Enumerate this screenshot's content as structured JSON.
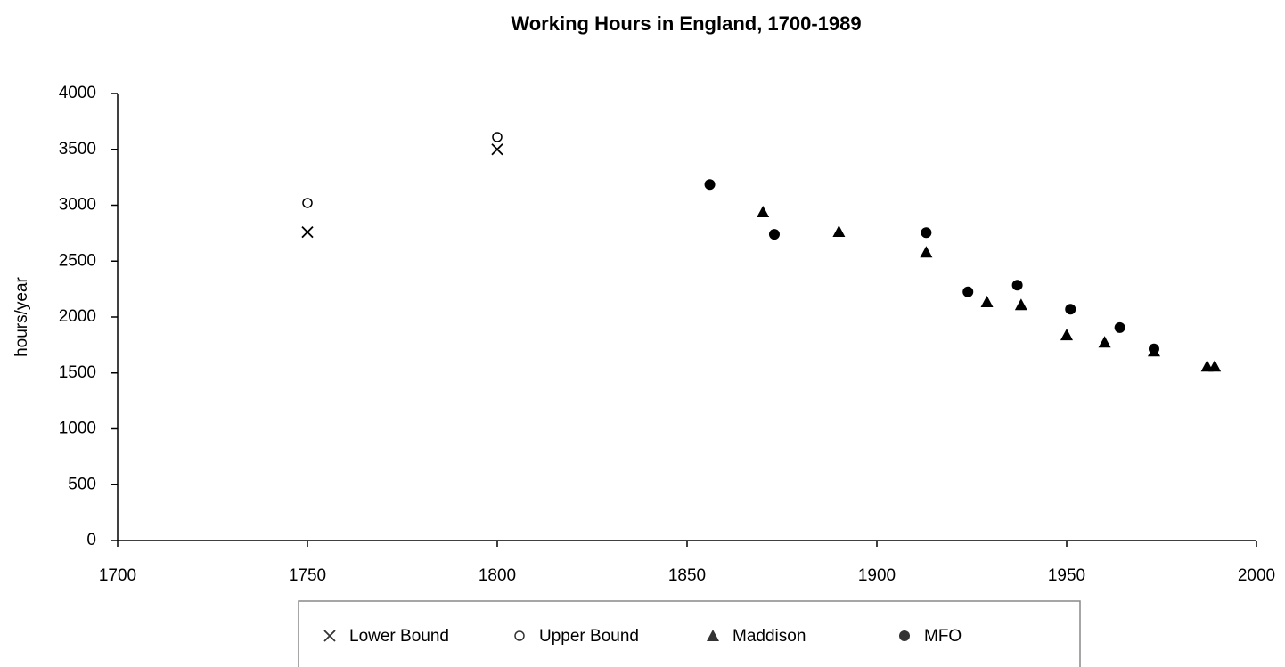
{
  "chart_data": {
    "type": "scatter",
    "title": "Working Hours in England, 1700-1989",
    "y_label": "hours/year",
    "xlim": [
      1700,
      2000
    ],
    "xticks": [
      1700,
      1750,
      1800,
      1850,
      1900,
      1950,
      2000
    ],
    "ylim": [
      0,
      4000
    ],
    "yticks": [
      0,
      500,
      1000,
      1500,
      2000,
      2500,
      3000,
      3500,
      4000
    ],
    "grid": false,
    "legend": "bottom",
    "series": [
      {
        "name": "Lower Bound",
        "color": "#000000",
        "marker": "x",
        "x": [
          1750,
          1800
        ],
        "values": [
          2760,
          3500
        ]
      },
      {
        "name": "Upper Bound",
        "color": "#000000",
        "marker": "open-circle",
        "x": [
          1750,
          1800
        ],
        "values": [
          3020,
          3610
        ]
      },
      {
        "name": "Maddison",
        "color": "#000000",
        "marker": "triangle",
        "x": [
          1870,
          1890,
          1913,
          1929,
          1938,
          1950,
          1960,
          1973,
          1987,
          1989
        ],
        "values": [
          2940,
          2765,
          2580,
          2135,
          2110,
          1840,
          1775,
          1695,
          1560,
          1560
        ]
      },
      {
        "name": "MFO",
        "color": "#000000",
        "marker": "circle",
        "x": [
          1856,
          1873,
          1913,
          1924,
          1937,
          1951,
          1964,
          1973
        ],
        "values": [
          3185,
          2740,
          2755,
          2225,
          2285,
          2070,
          1905,
          1715
        ]
      }
    ]
  }
}
